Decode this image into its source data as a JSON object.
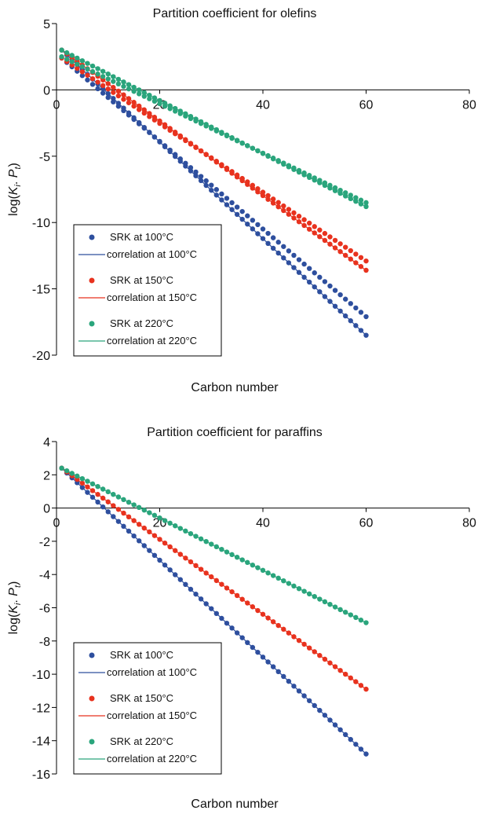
{
  "chart_data": [
    {
      "type": "scatter",
      "title": "Partition coefficient for olefins",
      "xlabel": "Carbon number",
      "ylabel": "log(K_i . P_t)",
      "xlim": [
        0,
        80
      ],
      "ylim": [
        -20,
        5
      ],
      "xticks": [
        0,
        20,
        40,
        60,
        80
      ],
      "yticks": [
        5,
        0,
        -5,
        -10,
        -15,
        -20
      ],
      "x_range": [
        1,
        60
      ],
      "series": [
        {
          "name": "SRK at 100°C",
          "kind": "points",
          "color": "#2e4f9e",
          "x_start": 1,
          "x_end": 60,
          "y_start": 3.0,
          "y_end": -18.5
        },
        {
          "name": "SRK at 100°C",
          "kind": "points",
          "color": "#2e4f9e",
          "x_start": 1,
          "x_end": 60,
          "y_start": 2.4,
          "y_end": -17.1
        },
        {
          "name": "correlation at 100°C",
          "kind": "line",
          "color": "#2e4f9e",
          "x_start": 1,
          "x_end": 60,
          "y_start": 3.0,
          "y_end": -18.5
        },
        {
          "name": "SRK at 150°C",
          "kind": "points",
          "color": "#e8321e",
          "x_start": 1,
          "x_end": 60,
          "y_start": 3.0,
          "y_end": -13.6
        },
        {
          "name": "SRK at 150°C",
          "kind": "points",
          "color": "#e8321e",
          "x_start": 1,
          "x_end": 60,
          "y_start": 2.4,
          "y_end": -12.9
        },
        {
          "name": "correlation at 150°C",
          "kind": "line",
          "color": "#e8321e",
          "x_start": 1,
          "x_end": 60,
          "y_start": 3.0,
          "y_end": -13.6
        },
        {
          "name": "SRK at 220°C",
          "kind": "points",
          "color": "#2aa57c",
          "x_start": 1,
          "x_end": 60,
          "y_start": 3.0,
          "y_end": -8.8
        },
        {
          "name": "SRK at 220°C",
          "kind": "points",
          "color": "#2aa57c",
          "x_start": 1,
          "x_end": 60,
          "y_start": 2.5,
          "y_end": -8.5
        },
        {
          "name": "correlation at 220°C",
          "kind": "line",
          "color": "#2aa57c",
          "x_start": 1,
          "x_end": 60,
          "y_start": 3.0,
          "y_end": -8.8
        }
      ],
      "legend": [
        {
          "label": "SRK at 100°C",
          "kind": "point",
          "color": "#2e4f9e"
        },
        {
          "label": "correlation at 100°C",
          "kind": "line",
          "color": "#2e4f9e"
        },
        {
          "label": "SRK at 150°C",
          "kind": "point",
          "color": "#e8321e"
        },
        {
          "label": "correlation at 150°C",
          "kind": "line",
          "color": "#e8321e"
        },
        {
          "label": "SRK at 220°C",
          "kind": "point",
          "color": "#2aa57c"
        },
        {
          "label": "correlation at 220°C",
          "kind": "line",
          "color": "#2aa57c"
        }
      ],
      "legend_position": "bottom-left"
    },
    {
      "type": "scatter",
      "title": "Partition coefficient for paraffins",
      "xlabel": "Carbon number",
      "ylabel": "log(K_i . P_t)",
      "xlim": [
        0,
        80
      ],
      "ylim": [
        -16,
        4
      ],
      "xticks": [
        0,
        20,
        40,
        60,
        80
      ],
      "yticks": [
        4,
        2,
        0,
        -2,
        -4,
        -6,
        -8,
        -10,
        -12,
        -14,
        -16
      ],
      "x_range": [
        1,
        60
      ],
      "series": [
        {
          "name": "SRK at 100°C",
          "kind": "points",
          "color": "#2e4f9e",
          "x_start": 1,
          "x_end": 60,
          "y_start": 2.4,
          "y_end": -14.8
        },
        {
          "name": "correlation at 100°C",
          "kind": "line",
          "color": "#2e4f9e",
          "x_start": 1,
          "x_end": 60,
          "y_start": 2.4,
          "y_end": -14.8
        },
        {
          "name": "SRK at 150°C",
          "kind": "points",
          "color": "#e8321e",
          "x_start": 1,
          "x_end": 60,
          "y_start": 2.4,
          "y_end": -10.9
        },
        {
          "name": "correlation at 150°C",
          "kind": "line",
          "color": "#e8321e",
          "x_start": 1,
          "x_end": 60,
          "y_start": 2.4,
          "y_end": -10.9
        },
        {
          "name": "SRK at 220°C",
          "kind": "points",
          "color": "#2aa57c",
          "x_start": 1,
          "x_end": 60,
          "y_start": 2.4,
          "y_end": -6.9
        },
        {
          "name": "correlation at 220°C",
          "kind": "line",
          "color": "#2aa57c",
          "x_start": 1,
          "x_end": 60,
          "y_start": 2.4,
          "y_end": -6.9
        }
      ],
      "legend": [
        {
          "label": "SRK at 100°C",
          "kind": "point",
          "color": "#2e4f9e"
        },
        {
          "label": "correlation at 100°C",
          "kind": "line",
          "color": "#2e4f9e"
        },
        {
          "label": "SRK at 150°C",
          "kind": "point",
          "color": "#e8321e"
        },
        {
          "label": "correlation at 150°C",
          "kind": "line",
          "color": "#e8321e"
        },
        {
          "label": "SRK at 220°C",
          "kind": "point",
          "color": "#2aa57c"
        },
        {
          "label": "correlation at 220°C",
          "kind": "line",
          "color": "#2aa57c"
        }
      ],
      "legend_position": "bottom-left"
    }
  ]
}
